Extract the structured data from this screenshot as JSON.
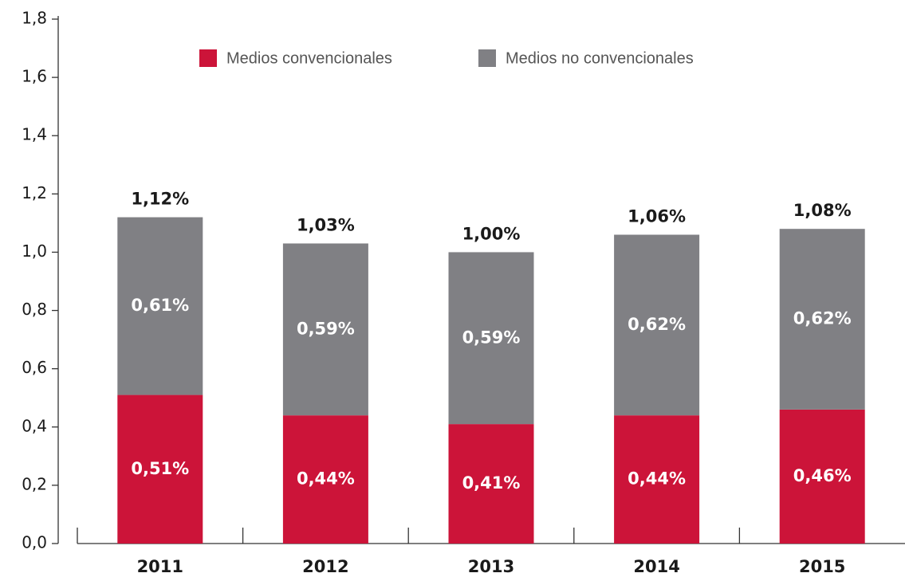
{
  "chart_data": {
    "type": "stacked-bar",
    "categories": [
      "2011",
      "2012",
      "2013",
      "2014",
      "2015"
    ],
    "series": [
      {
        "name": "Medios convencionales",
        "color": "#cc1439",
        "values": [
          0.51,
          0.44,
          0.41,
          0.44,
          0.46
        ],
        "value_labels": [
          "0,51%",
          "0,44%",
          "0,41%",
          "0,44%",
          "0,46%"
        ]
      },
      {
        "name": "Medios no convencionales",
        "color": "#808084",
        "values": [
          0.61,
          0.59,
          0.59,
          0.62,
          0.62
        ],
        "value_labels": [
          "0,61%",
          "0,59%",
          "0,59%",
          "0,62%",
          "0,62%"
        ]
      }
    ],
    "totals": [
      1.12,
      1.03,
      1.0,
      1.06,
      1.08
    ],
    "total_labels": [
      "1,12%",
      "1,03%",
      "1,00%",
      "1,06%",
      "1,08%"
    ],
    "ylim": [
      0,
      1.8
    ],
    "yticks": [
      {
        "value": 0,
        "label": "0,0"
      },
      {
        "value": 0.2,
        "label": "0,2"
      },
      {
        "value": 0.4,
        "label": "0,4"
      },
      {
        "value": 0.6,
        "label": "0,6"
      },
      {
        "value": 0.8,
        "label": "0,8"
      },
      {
        "value": 1.0,
        "label": "1,0"
      },
      {
        "value": 1.2,
        "label": "1,2"
      },
      {
        "value": 1.4,
        "label": "1,4"
      },
      {
        "value": 1.6,
        "label": "1,6"
      },
      {
        "value": 1.8,
        "label": "1,8"
      }
    ],
    "legend": "top"
  }
}
